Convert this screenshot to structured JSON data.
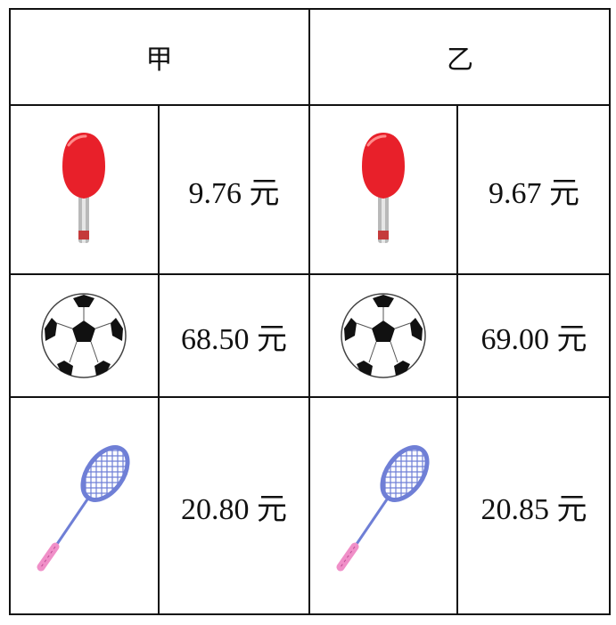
{
  "table": {
    "headers": [
      "甲",
      "乙"
    ],
    "rows": [
      {
        "item_icon": "table-tennis-paddle-icon",
        "jia_price": "9.76 元",
        "yi_price": "9.67 元"
      },
      {
        "item_icon": "soccer-ball-icon",
        "jia_price": "68.50 元",
        "yi_price": "69.00 元"
      },
      {
        "item_icon": "badminton-racket-icon",
        "jia_price": "20.80 元",
        "yi_price": "20.85 元"
      }
    ]
  },
  "colors": {
    "paddle_red": "#e8202a",
    "racket_blue": "#6f7fd6",
    "handle_pink": "#f08fc8",
    "line": "#111111"
  }
}
